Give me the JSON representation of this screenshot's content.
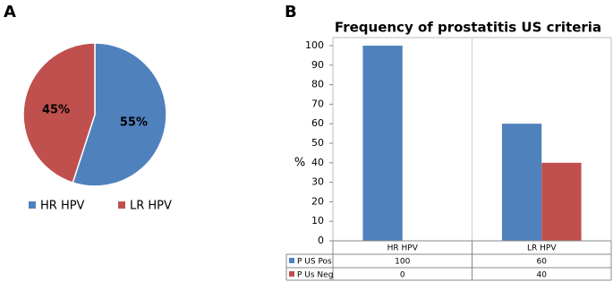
{
  "chart_data": [
    {
      "type": "pie",
      "panel": "A",
      "categories": [
        "HR HPV",
        "LR HPV"
      ],
      "values": [
        55,
        45
      ],
      "value_labels": [
        "55%",
        "45%"
      ],
      "colors": [
        "#4f81bd",
        "#c0504d"
      ]
    },
    {
      "type": "bar",
      "panel": "B",
      "title": "Frequency of prostatitis US criteria",
      "ylabel": "%",
      "categories": [
        "HR HPV",
        "LR HPV"
      ],
      "series": [
        {
          "name": "P US Pos",
          "color": "#4f81bd",
          "values": [
            100,
            60
          ]
        },
        {
          "name": "P Us Neg",
          "color": "#c0504d",
          "values": [
            0,
            40
          ]
        }
      ],
      "ylim": [
        0,
        100
      ],
      "yticks": [
        0,
        10,
        20,
        30,
        40,
        50,
        60,
        70,
        80,
        90,
        100
      ]
    }
  ]
}
